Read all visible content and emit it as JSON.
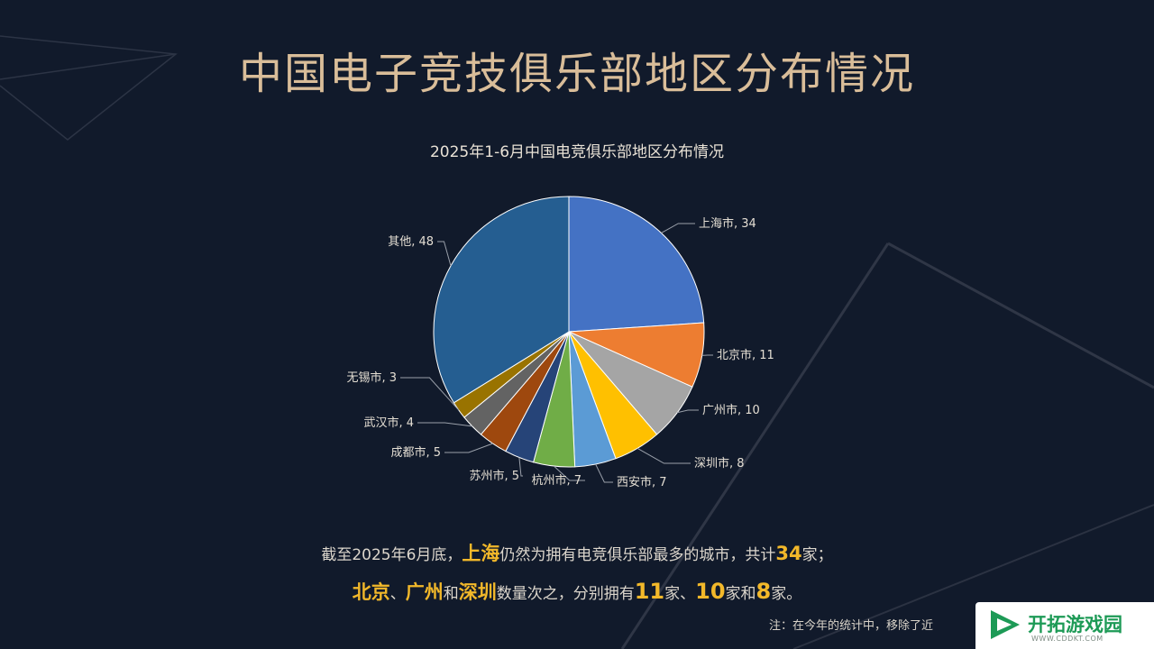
{
  "page": {
    "title": "中国电子竞技俱乐部地区分布情况"
  },
  "chart_data": {
    "type": "pie",
    "title": "2025年1-6月中国电竞俱乐部地区分布情况",
    "slices": [
      {
        "label": "上海市",
        "value": 34,
        "color": "#4472c4"
      },
      {
        "label": "北京市",
        "value": 11,
        "color": "#ed7d31"
      },
      {
        "label": "广州市",
        "value": 10,
        "color": "#a5a5a5"
      },
      {
        "label": "深圳市",
        "value": 8,
        "color": "#ffc000"
      },
      {
        "label": "西安市",
        "value": 7,
        "color": "#5b9bd5"
      },
      {
        "label": "杭州市",
        "value": 7,
        "color": "#70ad47"
      },
      {
        "label": "苏州市",
        "value": 5,
        "color": "#264478"
      },
      {
        "label": "成都市",
        "value": 5,
        "color": "#9e480e"
      },
      {
        "label": "武汉市",
        "value": 4,
        "color": "#636363"
      },
      {
        "label": "无锡市",
        "value": 3,
        "color": "#997300"
      },
      {
        "label": "其他",
        "value": 48,
        "color": "#255e91"
      }
    ]
  },
  "summary": {
    "line1": {
      "p1": "截至2025年6月底，",
      "h1": "上海",
      "p2": "仍然为拥有电竞俱乐部最多的城市，共计",
      "h2": "34",
      "p3": "家；"
    },
    "line2": {
      "h1": "北京",
      "p1": "、",
      "h2": "广州",
      "p2": "和",
      "h3": "深圳",
      "p3": "数量次之，分别拥有",
      "h4": "11",
      "p4": "家、",
      "h5": "10",
      "p5": "家和",
      "h6": "8",
      "p6": "家。"
    }
  },
  "footnote": "注：在今年的统计中，移除了近",
  "watermark": {
    "name": "开拓游戏园",
    "url": "WWW.CDDKT.COM",
    "icon": "play-triangle-icon"
  }
}
